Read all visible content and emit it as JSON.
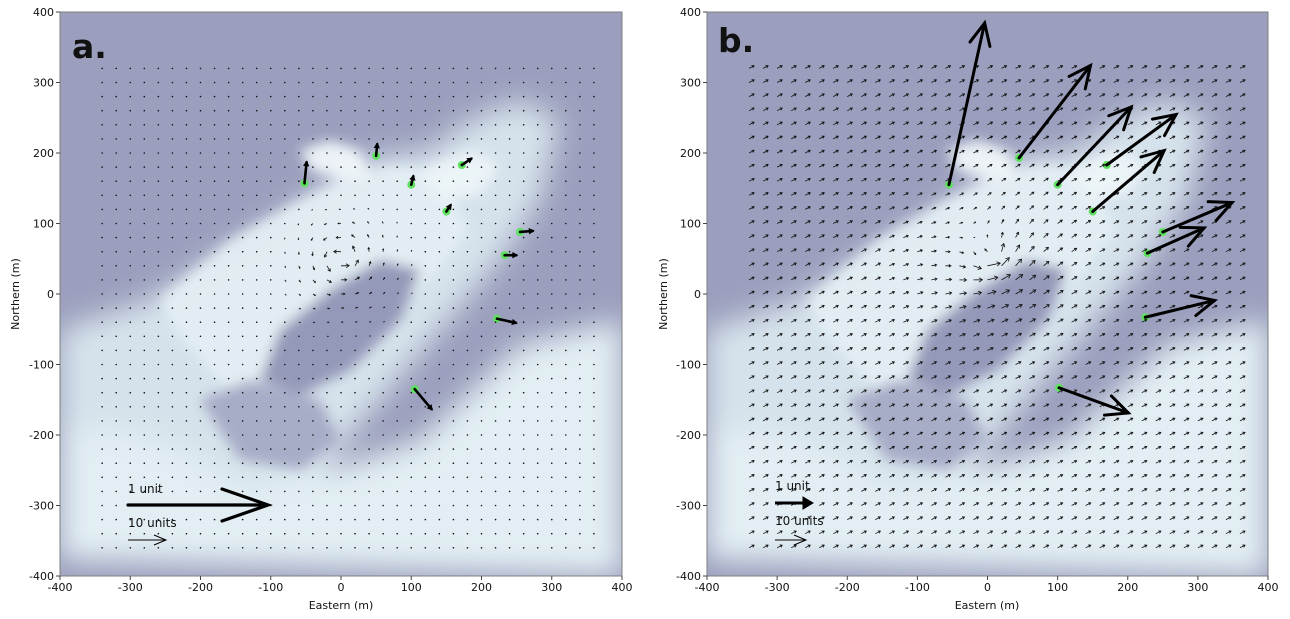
{
  "chart_data": [
    {
      "type": "quiver",
      "panel_label": "a.",
      "xlabel": "Eastern (m)",
      "ylabel": "Northern (m)",
      "xlim": [
        -400,
        400
      ],
      "ylim": [
        -400,
        400
      ],
      "xticks": [
        "-400",
        "-300",
        "-200",
        "-100",
        "0",
        "100",
        "200",
        "300",
        "400"
      ],
      "yticks": [
        "400",
        "300",
        "200",
        "100",
        "0",
        "-100",
        "-200",
        "-300",
        "-400"
      ],
      "legend": [
        {
          "label": "1 unit"
        },
        {
          "label": "10 units"
        }
      ],
      "stations": [
        {
          "x": -52,
          "y": 157,
          "u": 0.1,
          "v": 1.0
        },
        {
          "x": 50,
          "y": 196,
          "u": 0.05,
          "v": 0.55
        },
        {
          "x": 100,
          "y": 155,
          "u": 0.1,
          "v": 0.4
        },
        {
          "x": 150,
          "y": 117,
          "u": 0.2,
          "v": 0.3
        },
        {
          "x": 172,
          "y": 183,
          "u": 0.45,
          "v": 0.3
        },
        {
          "x": 255,
          "y": 88,
          "u": 0.6,
          "v": 0.05
        },
        {
          "x": 233,
          "y": 55,
          "u": 0.55,
          "v": 0.0
        },
        {
          "x": 222,
          "y": -35,
          "u": 0.9,
          "v": -0.2
        },
        {
          "x": 105,
          "y": -135,
          "u": 0.8,
          "v": -0.95
        }
      ],
      "field": {
        "uniform": [
          0.04,
          0.01
        ],
        "vortex_center": [
          0,
          50
        ]
      }
    },
    {
      "type": "quiver",
      "panel_label": "b.",
      "xlabel": "Eastern (m)",
      "ylabel": "Northern (m)",
      "xlim": [
        -400,
        400
      ],
      "ylim": [
        -400,
        400
      ],
      "xticks": [
        "-400",
        "-300",
        "-200",
        "-100",
        "0",
        "100",
        "200",
        "300",
        "400"
      ],
      "yticks": [
        "400",
        "300",
        "200",
        "100",
        "0",
        "-100",
        "-200",
        "-300",
        "-400"
      ],
      "legend": [
        {
          "label": "1 unit"
        },
        {
          "label": "10 units"
        }
      ],
      "stations": [
        {
          "x": -55,
          "y": 155,
          "u": 1.7,
          "v": 7.7
        },
        {
          "x": 45,
          "y": 193,
          "u": 3.4,
          "v": 4.4
        },
        {
          "x": 100,
          "y": 155,
          "u": 3.5,
          "v": 3.7
        },
        {
          "x": 150,
          "y": 117,
          "u": 3.4,
          "v": 2.9
        },
        {
          "x": 170,
          "y": 183,
          "u": 3.3,
          "v": 2.4
        },
        {
          "x": 250,
          "y": 88,
          "u": 3.3,
          "v": 1.4
        },
        {
          "x": 228,
          "y": 58,
          "u": 2.7,
          "v": 1.2
        },
        {
          "x": 225,
          "y": -33,
          "u": 3.3,
          "v": 0.8
        },
        {
          "x": 102,
          "y": -133,
          "u": 3.3,
          "v": -1.2
        }
      ],
      "field": {
        "uniform": [
          0.42,
          0.22
        ],
        "vortex_center": [
          0,
          50
        ]
      }
    }
  ],
  "colors": {
    "background_dark": "#9b9fbd",
    "background_light": "#e7f2f5",
    "station": "#5fe05f",
    "arrow": "#000000"
  }
}
